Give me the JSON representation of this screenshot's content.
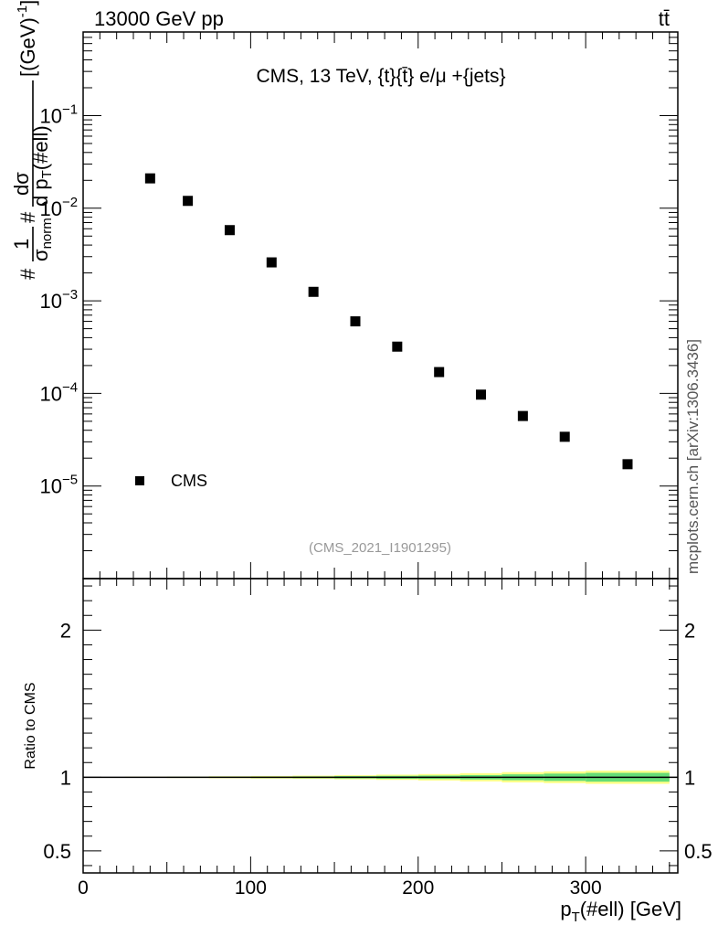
{
  "header": {
    "left": "13000 GeV pp",
    "right": "tt̄"
  },
  "side_label": "mcplots.cern.ch [arXiv:1306.3436]",
  "chart_data": [
    {
      "type": "scatter",
      "title": "CMS, 13 TeV, {t}{t̄} e/μ +{jets}",
      "annotation": "(CMS_2021_I1901295)",
      "ylabel": "#1/σnorm #dσ/d pT(#ell) [(GeV)⁻¹]",
      "ylabel_parts": {
        "hash1": "#",
        "numer": "1",
        "sigma": "σ",
        "norm": "norm",
        "hash2": "#",
        "dsigma": "dσ",
        "dpt": "d p",
        "pt_sub": "T",
        "ell": "(#ell)",
        "units": "[(GeV)",
        "units_exp": "-1",
        "units_close": "]"
      },
      "yscale": "log",
      "ylim": [
        1e-06,
        0.8
      ],
      "xlim": [
        0,
        355
      ],
      "y_ticks": [
        {
          "value": 0.1,
          "base": "10",
          "exp": "−1"
        },
        {
          "value": 0.01,
          "base": "10",
          "exp": "−2"
        },
        {
          "value": 0.001,
          "base": "10",
          "exp": "−3"
        },
        {
          "value": 0.0001,
          "base": "10",
          "exp": "−4"
        },
        {
          "value": 1e-05,
          "base": "10",
          "exp": "−5"
        }
      ],
      "legend": {
        "entry": "CMS",
        "placement": "bottom-left"
      },
      "series": [
        {
          "name": "CMS",
          "marker": "square",
          "x": [
            40,
            62.5,
            87.5,
            112.5,
            137.5,
            162.5,
            187.5,
            212.5,
            237.5,
            262.5,
            287.5,
            325
          ],
          "y": [
            0.021,
            0.012,
            0.0058,
            0.0026,
            0.00125,
            0.0006,
            0.00032,
            0.00017,
            9.7e-05,
            5.7e-05,
            3.4e-05,
            1.72e-05
          ]
        }
      ]
    },
    {
      "type": "line",
      "ylabel": "Ratio to CMS",
      "xlabel": "p",
      "xlabel_sub": "T",
      "xlabel_rest": "(#ell) [GeV]",
      "xlim": [
        0,
        355
      ],
      "ylim": [
        0.35,
        2.35
      ],
      "x_ticks": [
        {
          "value": 0,
          "label": "0"
        },
        {
          "value": 100,
          "label": "100"
        },
        {
          "value": 200,
          "label": "200"
        },
        {
          "value": 300,
          "label": "300"
        }
      ],
      "y_ticks": [
        {
          "value": 0.5,
          "label": "0.5"
        },
        {
          "value": 1,
          "label": "1"
        },
        {
          "value": 2,
          "label": "2"
        }
      ],
      "reference_line": 1,
      "bins": [
        25,
        50,
        75,
        100,
        125,
        150,
        175,
        200,
        225,
        250,
        275,
        300,
        350
      ],
      "band_inner": [
        0.002,
        0.003,
        0.004,
        0.005,
        0.006,
        0.008,
        0.01,
        0.012,
        0.015,
        0.02,
        0.025,
        0.03
      ],
      "band_outer": [
        0.004,
        0.005,
        0.007,
        0.009,
        0.011,
        0.014,
        0.018,
        0.022,
        0.028,
        0.035,
        0.04,
        0.045
      ],
      "colors": {
        "inner": "#66dd77",
        "outer": "#ffff88"
      }
    }
  ]
}
